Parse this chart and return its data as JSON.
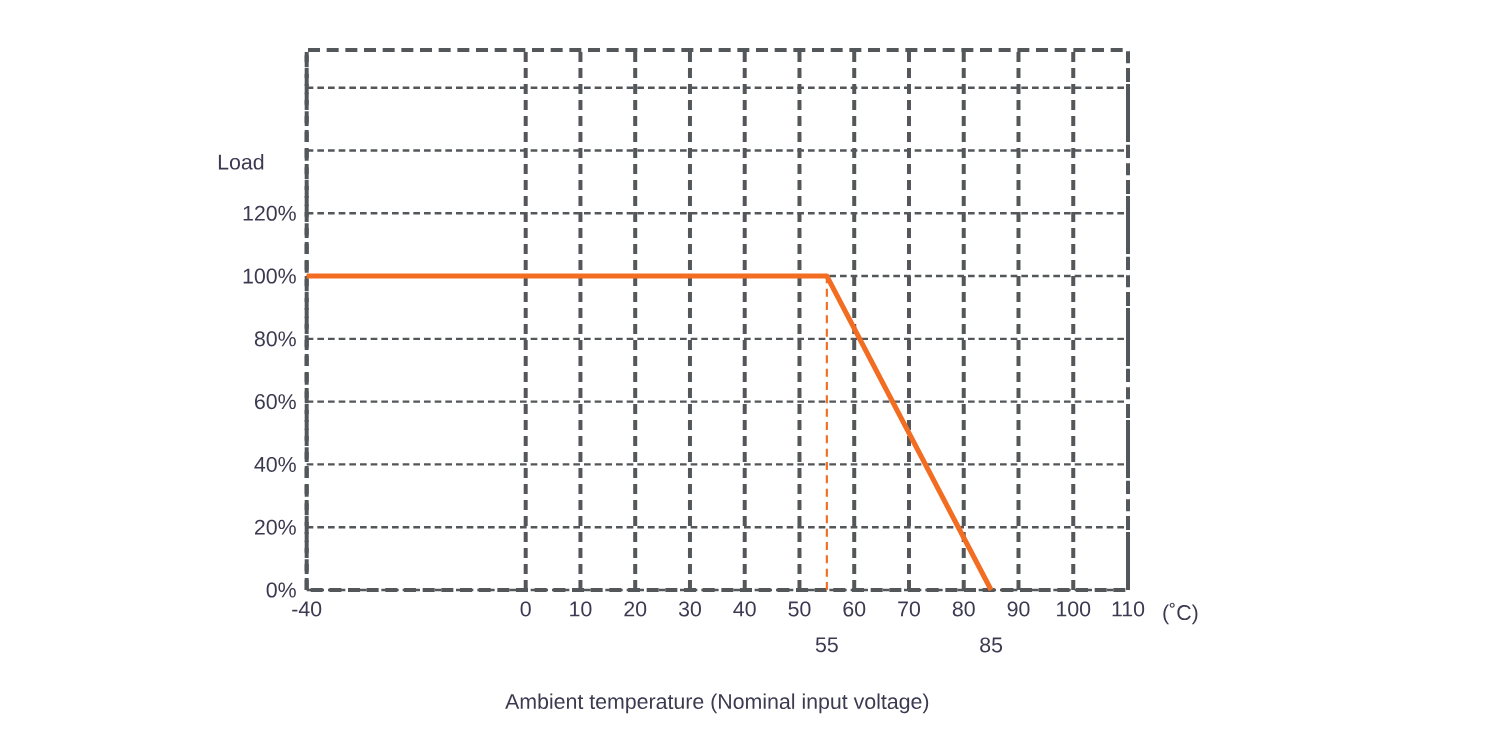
{
  "chart_data": {
    "type": "line",
    "xlabel": "Ambient temperature (Nominal input voltage)",
    "ylabel": "Load",
    "xlim": [
      -40,
      110
    ],
    "xticks": [
      -40,
      0,
      10,
      20,
      30,
      40,
      50,
      60,
      70,
      80,
      90,
      100,
      110
    ],
    "ylim": [
      0,
      172
    ],
    "yticks": [
      {
        "value": 0,
        "label": "0%"
      },
      {
        "value": 20,
        "label": "20%"
      },
      {
        "value": 40,
        "label": "40%"
      },
      {
        "value": 60,
        "label": "60%"
      },
      {
        "value": 80,
        "label": "80%"
      },
      {
        "value": 100,
        "label": "100%"
      },
      {
        "value": 120,
        "label": "120%"
      },
      {
        "value": 140,
        "label": null
      },
      {
        "value": 160,
        "label": null
      }
    ],
    "grid": true,
    "series": [
      {
        "color": "#f26d21",
        "x": [
          -40,
          55,
          85
        ],
        "values": [
          100,
          100,
          0
        ]
      },
      {
        "color": "#f26d21",
        "x": [
          55,
          55
        ],
        "values": [
          0,
          100
        ],
        "line_style": "dashed"
      }
    ],
    "annotations": [
      "(˚C)",
      {
        "text": "55",
        "x": 55,
        "y": 0
      },
      {
        "text": "85",
        "x": 85,
        "y": 0
      }
    ]
  }
}
